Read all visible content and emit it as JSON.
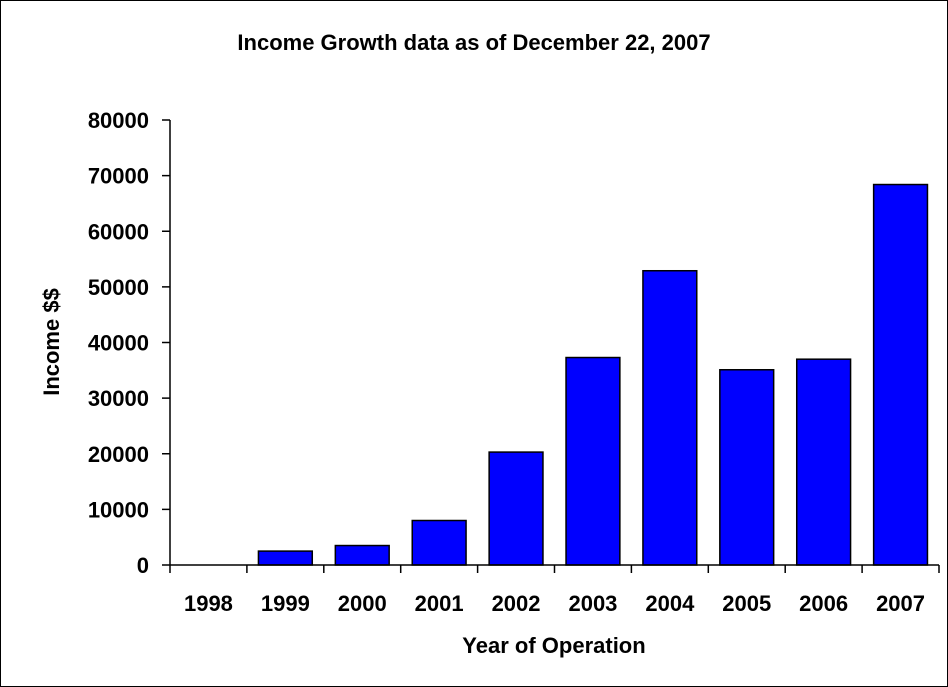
{
  "chart_data": {
    "type": "bar",
    "title": "Income Growth data as of December 22, 2007",
    "xlabel": "Year of Operation",
    "ylabel": "Income $$",
    "categories": [
      "1998",
      "1999",
      "2000",
      "2001",
      "2002",
      "2003",
      "2004",
      "2005",
      "2006",
      "2007"
    ],
    "values": [
      0,
      2500,
      3500,
      8000,
      20300,
      37300,
      52900,
      35100,
      37000,
      68400
    ],
    "ylim": [
      0,
      80000
    ],
    "yticks": [
      "0",
      "10000",
      "20000",
      "30000",
      "40000",
      "50000",
      "60000",
      "70000",
      "80000"
    ],
    "grid": false,
    "legend": "none",
    "colors": {
      "bar_fill": "#0000FF",
      "bar_stroke": "#000000",
      "axis": "#000000",
      "border": "#000000",
      "background": "#FFFFFF"
    }
  }
}
